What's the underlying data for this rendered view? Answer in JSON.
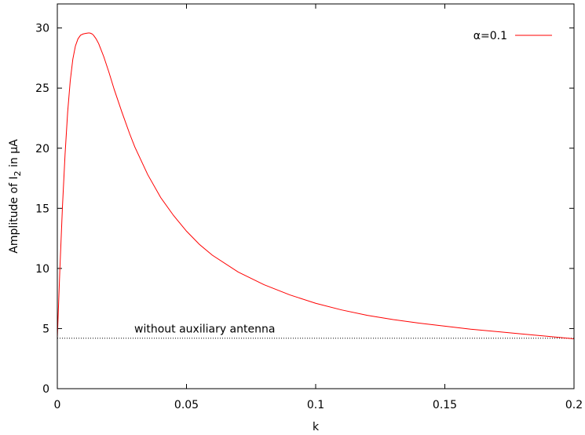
{
  "chart_data": {
    "type": "line",
    "title": "",
    "xlabel": "k",
    "ylabel_main": "Amplitude of I",
    "ylabel_sub": "2",
    "ylabel_tail": " in μA",
    "xlim": [
      0,
      0.2
    ],
    "ylim": [
      0,
      32
    ],
    "x_ticks": [
      0,
      0.05,
      0.1,
      0.15,
      0.2
    ],
    "x_tick_labels": [
      "0",
      "0.05",
      "0.1",
      "0.15",
      "0.2"
    ],
    "y_ticks": [
      0,
      5,
      10,
      15,
      20,
      25,
      30
    ],
    "y_tick_labels": [
      "0",
      "5",
      "10",
      "15",
      "20",
      "25",
      "30"
    ],
    "grid": false,
    "legend_position": "top-right",
    "colors": {
      "series": "#ff0000",
      "reference": "#000000",
      "axes": "#000000"
    },
    "series": [
      {
        "name": "α=0.1",
        "x": [
          0,
          0.001,
          0.002,
          0.003,
          0.004,
          0.005,
          0.006,
          0.007,
          0.008,
          0.009,
          0.01,
          0.011,
          0.012,
          0.0125,
          0.013,
          0.0135,
          0.014,
          0.015,
          0.016,
          0.018,
          0.02,
          0.022,
          0.025,
          0.028,
          0.03,
          0.035,
          0.04,
          0.045,
          0.05,
          0.055,
          0.06,
          0.07,
          0.08,
          0.09,
          0.1,
          0.11,
          0.12,
          0.13,
          0.14,
          0.15,
          0.16,
          0.17,
          0.18,
          0.19,
          0.2
        ],
        "values": [
          4.2,
          10.0,
          15.2,
          19.5,
          23.0,
          25.6,
          27.4,
          28.5,
          29.1,
          29.4,
          29.5,
          29.55,
          29.58,
          29.58,
          29.55,
          29.5,
          29.4,
          29.1,
          28.7,
          27.6,
          26.3,
          24.9,
          23.0,
          21.2,
          20.1,
          17.8,
          15.9,
          14.4,
          13.1,
          12.0,
          11.1,
          9.7,
          8.65,
          7.8,
          7.1,
          6.55,
          6.1,
          5.75,
          5.45,
          5.2,
          4.95,
          4.75,
          4.55,
          4.35,
          4.15
        ]
      }
    ],
    "reference_line": {
      "y": 4.2,
      "label": "without auxiliary antenna"
    }
  }
}
